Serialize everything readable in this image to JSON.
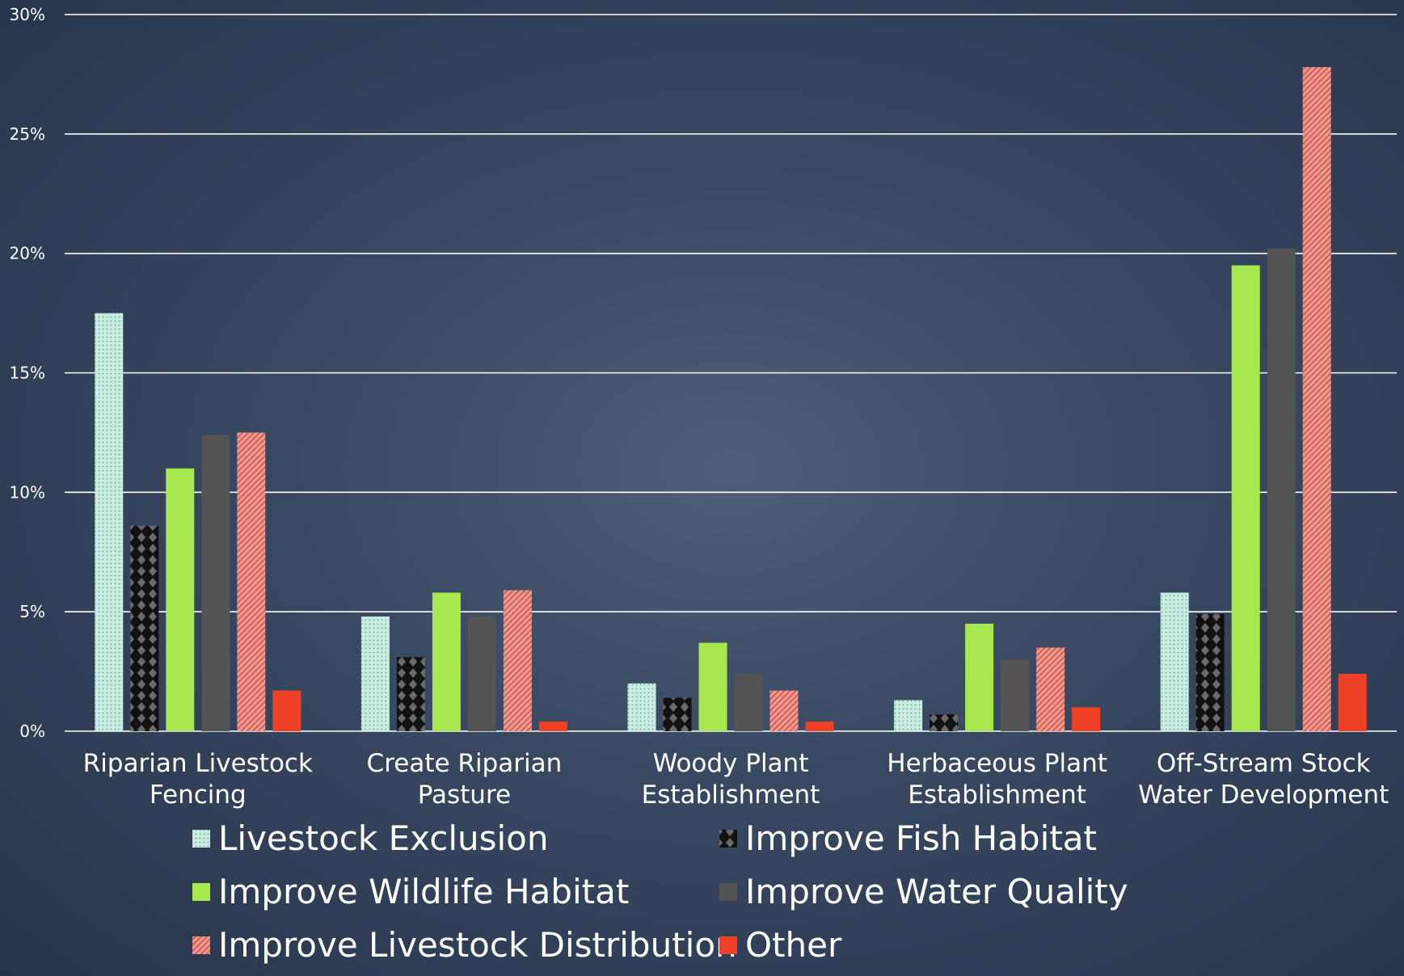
{
  "chart_data": {
    "type": "bar",
    "categories": [
      [
        "Riparian Livestock",
        "Fencing"
      ],
      [
        "Create Riparian",
        "Pasture"
      ],
      [
        "Woody Plant",
        "Establishment"
      ],
      [
        "Herbaceous Plant",
        "Establishment"
      ],
      [
        "Off-Stream Stock",
        "Water Development"
      ]
    ],
    "series": [
      {
        "name": "Livestock Exclusion",
        "color": "#c8eee2",
        "pattern": "dots",
        "values": [
          17.5,
          4.8,
          2.0,
          1.3,
          5.8
        ]
      },
      {
        "name": "Improve Fish Habitat",
        "color": "#111111",
        "pattern": "diamonds",
        "values": [
          8.6,
          3.1,
          1.4,
          0.7,
          4.9
        ]
      },
      {
        "name": "Improve Wildlife Habitat",
        "color": "#a8e84f",
        "pattern": "solid",
        "values": [
          11.0,
          5.8,
          3.7,
          4.5,
          19.5
        ]
      },
      {
        "name": "Improve Water Quality",
        "color": "#545454",
        "pattern": "solid",
        "values": [
          12.4,
          4.8,
          2.4,
          3.0,
          20.2
        ]
      },
      {
        "name": "Improve Livestock Distribution",
        "color": "#ef9a8f",
        "pattern": "stripes",
        "values": [
          12.5,
          5.9,
          1.7,
          3.5,
          27.8
        ]
      },
      {
        "name": "Other",
        "color": "#ee4128",
        "pattern": "solid",
        "values": [
          1.7,
          0.4,
          0.4,
          1.0,
          2.4
        ]
      }
    ],
    "yticks": [
      "0%",
      "5%",
      "10%",
      "15%",
      "20%",
      "25%",
      "30%"
    ],
    "ylim": [
      0,
      30
    ],
    "grid": true,
    "legend_position": "bottom",
    "title": "",
    "xlabel": "",
    "ylabel": ""
  }
}
